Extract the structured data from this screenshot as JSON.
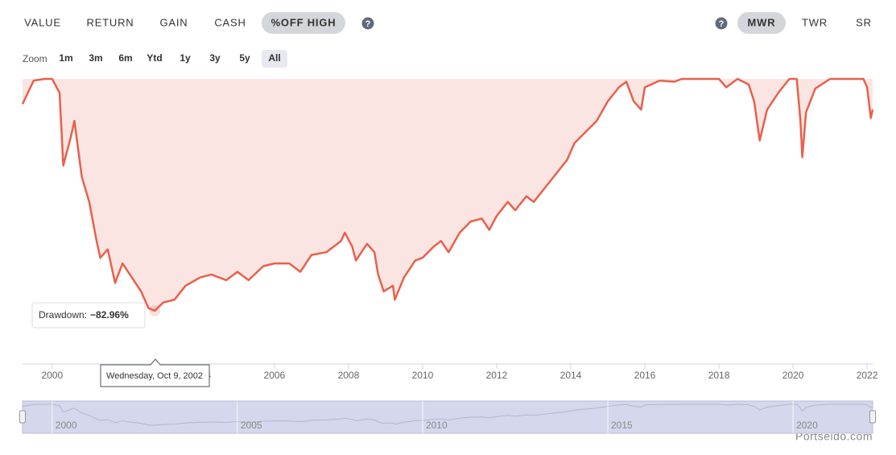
{
  "tabs": [
    "VALUE",
    "RETURN",
    "GAIN",
    "CASH",
    "%OFF HIGH"
  ],
  "active_tab": 4,
  "right_tabs": [
    "MWR",
    "TWR",
    "SR"
  ],
  "active_right_tab": 0,
  "zoom_label": "Zoom",
  "zoom_options": [
    "1m",
    "3m",
    "6m",
    "Ytd",
    "1y",
    "3y",
    "5y",
    "All"
  ],
  "active_zoom": 7,
  "chart_data": {
    "type": "area",
    "x": [
      1999.2,
      1999.5,
      1999.8,
      2000.0,
      2000.2,
      2000.3,
      2000.5,
      2000.6,
      2000.8,
      2001.0,
      2001.2,
      2001.3,
      2001.5,
      2001.7,
      2001.9,
      2002.1,
      2002.4,
      2002.6,
      2002.77,
      2003.0,
      2003.3,
      2003.6,
      2004.0,
      2004.3,
      2004.7,
      2005.0,
      2005.3,
      2005.7,
      2006.0,
      2006.4,
      2006.7,
      2007.0,
      2007.4,
      2007.8,
      2007.9,
      2008.1,
      2008.2,
      2008.5,
      2008.7,
      2008.8,
      2008.95,
      2009.2,
      2009.25,
      2009.5,
      2009.8,
      2010.0,
      2010.3,
      2010.5,
      2010.7,
      2011.0,
      2011.3,
      2011.6,
      2011.8,
      2012.0,
      2012.3,
      2012.5,
      2012.8,
      2013.0,
      2013.3,
      2013.6,
      2013.9,
      2014.1,
      2014.4,
      2014.7,
      2015.0,
      2015.3,
      2015.5,
      2015.7,
      2015.9,
      2016.0,
      2016.4,
      2016.8,
      2017.0,
      2017.5,
      2018.0,
      2018.2,
      2018.5,
      2018.8,
      2018.95,
      2019.1,
      2019.3,
      2019.6,
      2019.9,
      2020.1,
      2020.2,
      2020.25,
      2020.35,
      2020.6,
      2021.0,
      2021.5,
      2021.9,
      2022.0,
      2022.1,
      2022.15
    ],
    "values": [
      -9,
      -0.6,
      0,
      0,
      -5,
      -31,
      -21,
      -15,
      -35,
      -44,
      -58,
      -64,
      -61,
      -73,
      -66,
      -70,
      -76,
      -82,
      -82.96,
      -80,
      -79,
      -74,
      -71,
      -70,
      -72,
      -69,
      -72,
      -67,
      -66,
      -66,
      -69,
      -63,
      -62,
      -58,
      -55,
      -60,
      -65,
      -59,
      -62,
      -70,
      -76,
      -74,
      -79,
      -71,
      -65,
      -64,
      -60,
      -58,
      -62,
      -55,
      -51,
      -50,
      -54,
      -49,
      -44,
      -47,
      -42,
      -44,
      -39,
      -34,
      -29,
      -23,
      -19,
      -15,
      -8,
      -3,
      -1,
      -8,
      -11,
      -3,
      -0.6,
      -1,
      0,
      0,
      0,
      -3,
      0,
      -2,
      -8,
      -22,
      -11,
      -5,
      0,
      0,
      -15,
      -28,
      -12,
      -3.5,
      0,
      0,
      0,
      -3,
      -14,
      -11
    ],
    "color": "#e8604c",
    "fill": "#fbe5e2",
    "xlim": [
      1999.2,
      2022.15
    ],
    "ylim": [
      -102,
      0
    ],
    "xticks": [
      2000,
      2002,
      2004,
      2006,
      2008,
      2010,
      2012,
      2014,
      2016,
      2018,
      2020,
      2022
    ],
    "navigator_xticks": [
      2000,
      2005,
      2010,
      2015,
      2020
    ],
    "tooltip": {
      "index": 18,
      "label": "Drawdown:",
      "value": "−82.96%",
      "date": "Wednesday, Oct 9, 2002"
    }
  },
  "watermark": "Portseido.com"
}
